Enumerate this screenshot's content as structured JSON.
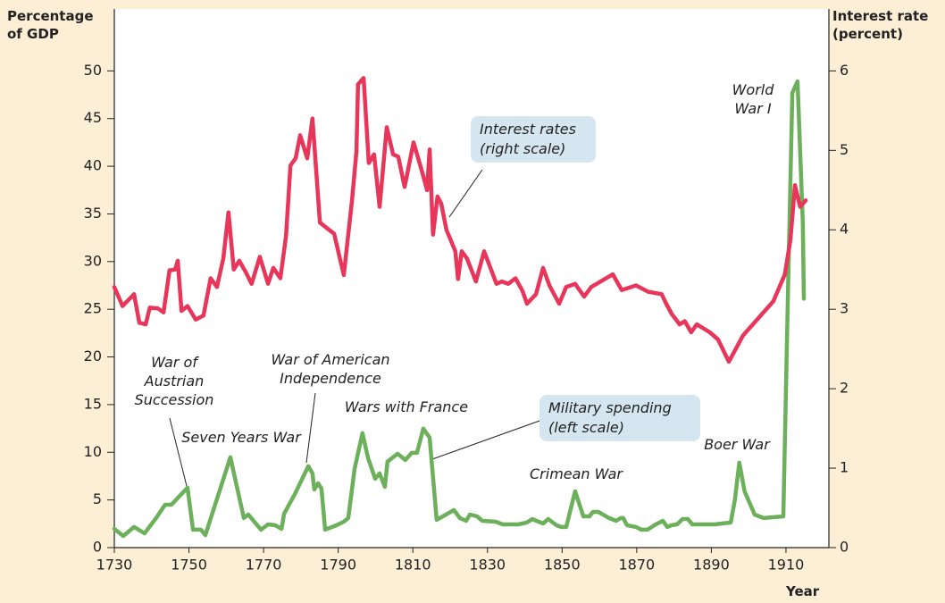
{
  "chart_data": {
    "type": "line",
    "y_label": "Percentage of GDP",
    "y2_label": "Interest rate (percent)",
    "x_label": "Year",
    "xlim": [
      1730,
      1921.5
    ],
    "xticks": [
      1730,
      1750,
      1770,
      1790,
      1810,
      1830,
      1850,
      1870,
      1890,
      1910
    ],
    "ylim": [
      0,
      56.5
    ],
    "yticks": [
      0,
      5,
      10,
      15,
      20,
      25,
      30,
      35,
      40,
      45,
      50
    ],
    "y2lim": [
      0,
      6.78
    ],
    "y2ticks": [
      0,
      1,
      2,
      3,
      4,
      5,
      6
    ],
    "series": [
      {
        "name": "Interest rates (right scale)",
        "color": "#e8365a",
        "axis": "y2",
        "x": [
          1730.0,
          1732.2,
          1735.3,
          1736.7,
          1738.4,
          1739.5,
          1741.7,
          1743.2,
          1744.8,
          1746.3,
          1747.0,
          1748.0,
          1749.6,
          1751.8,
          1753.9,
          1755.8,
          1757.5,
          1759.2,
          1760.6,
          1762.0,
          1763.5,
          1765.2,
          1766.8,
          1769.0,
          1771.2,
          1772.6,
          1774.5,
          1776.0,
          1777.2,
          1778.6,
          1779.8,
          1781.7,
          1783.1,
          1785.1,
          1788.9,
          1791.5,
          1793.7,
          1794.9,
          1795.3,
          1796.8,
          1798.2,
          1799.6,
          1801.1,
          1803.0,
          1804.7,
          1806.1,
          1807.8,
          1810.2,
          1812.6,
          1813.8,
          1814.5,
          1815.4,
          1816.6,
          1817.6,
          1819.0,
          1821.4,
          1822.1,
          1823.1,
          1824.5,
          1826.9,
          1829.1,
          1830.8,
          1832.4,
          1833.9,
          1835.6,
          1837.5,
          1839.4,
          1840.6,
          1843.0,
          1844.9,
          1846.6,
          1849.2,
          1851.1,
          1853.5,
          1855.9,
          1857.8,
          1863.6,
          1866.0,
          1869.8,
          1873.1,
          1876.7,
          1877.9,
          1879.4,
          1881.5,
          1882.9,
          1884.6,
          1886.1,
          1889.6,
          1891.8,
          1894.7,
          1898.5,
          1906.6,
          1909.7,
          1911.2,
          1912.4,
          1913.8,
          1915.3
        ],
        "values": [
          3.28,
          3.04,
          3.19,
          2.83,
          2.81,
          3.02,
          3.01,
          2.96,
          3.49,
          3.5,
          3.61,
          2.98,
          3.04,
          2.87,
          2.92,
          3.39,
          3.28,
          3.64,
          4.22,
          3.5,
          3.61,
          3.47,
          3.32,
          3.66,
          3.32,
          3.52,
          3.39,
          3.92,
          4.81,
          4.9,
          5.19,
          4.9,
          5.4,
          4.09,
          3.95,
          3.43,
          4.37,
          4.99,
          5.83,
          5.91,
          4.84,
          4.95,
          4.29,
          5.29,
          4.95,
          4.92,
          4.54,
          5.1,
          4.71,
          4.5,
          5.01,
          3.94,
          4.42,
          4.33,
          4.0,
          3.73,
          3.38,
          3.73,
          3.64,
          3.35,
          3.73,
          3.52,
          3.32,
          3.35,
          3.32,
          3.39,
          3.23,
          3.07,
          3.19,
          3.52,
          3.3,
          3.07,
          3.28,
          3.32,
          3.16,
          3.28,
          3.44,
          3.24,
          3.3,
          3.22,
          3.19,
          3.07,
          2.94,
          2.81,
          2.85,
          2.71,
          2.81,
          2.71,
          2.62,
          2.34,
          2.67,
          3.1,
          3.44,
          3.88,
          4.56,
          4.29,
          4.37
        ]
      },
      {
        "name": "Military spending (left scale)",
        "color": "#6cb05b",
        "x": [
          1730.0,
          1732.4,
          1735.3,
          1738.1,
          1741.2,
          1743.6,
          1745.3,
          1749.6,
          1751.1,
          1753.2,
          1754.4,
          1761.1,
          1764.7,
          1765.9,
          1769.3,
          1771.2,
          1773.1,
          1774.8,
          1775.5,
          1778.4,
          1782.0,
          1783.1,
          1783.6,
          1784.6,
          1785.5,
          1786.5,
          1789.6,
          1791.5,
          1792.7,
          1794.4,
          1796.5,
          1798.0,
          1799.9,
          1801.1,
          1802.5,
          1803.2,
          1805.9,
          1808.0,
          1809.7,
          1811.1,
          1812.8,
          1814.5,
          1816.4,
          1821.0,
          1822.6,
          1824.3,
          1825.3,
          1827.2,
          1828.6,
          1832.2,
          1834.1,
          1838.2,
          1840.6,
          1842.0,
          1843.7,
          1844.9,
          1846.3,
          1848.5,
          1849.7,
          1851.1,
          1853.5,
          1855.7,
          1857.3,
          1858.3,
          1859.7,
          1862.6,
          1864.5,
          1865.7,
          1866.4,
          1867.4,
          1869.8,
          1871.2,
          1872.9,
          1875.1,
          1877.0,
          1878.2,
          1879.4,
          1880.8,
          1882.3,
          1883.7,
          1884.9,
          1890.9,
          1895.2,
          1896.3,
          1897.5,
          1898.9,
          1901.6,
          1904.0,
          1909.3,
          1910.5,
          1911.7,
          1913.1,
          1914.5,
          1914.8
        ],
        "values": [
          1.97,
          1.22,
          2.16,
          1.5,
          3.1,
          4.5,
          4.5,
          6.29,
          1.88,
          1.88,
          1.31,
          9.47,
          3.1,
          3.47,
          1.88,
          2.44,
          2.35,
          1.97,
          3.56,
          5.63,
          8.54,
          7.79,
          6.1,
          6.75,
          6.19,
          1.88,
          2.35,
          2.72,
          3.1,
          8.26,
          12.01,
          9.38,
          7.22,
          7.79,
          6.38,
          9.01,
          9.85,
          9.19,
          9.94,
          9.94,
          12.48,
          11.54,
          2.91,
          3.94,
          3.1,
          2.81,
          3.47,
          3.28,
          2.81,
          2.72,
          2.44,
          2.44,
          2.63,
          3.0,
          2.72,
          2.53,
          3.0,
          2.35,
          2.16,
          2.16,
          5.91,
          3.28,
          3.28,
          3.75,
          3.75,
          3.1,
          2.81,
          3.1,
          3.1,
          2.35,
          2.16,
          1.88,
          1.88,
          2.44,
          2.81,
          2.16,
          2.35,
          2.44,
          3.0,
          3.0,
          2.44,
          2.44,
          2.63,
          4.97,
          8.91,
          5.91,
          3.47,
          3.1,
          3.28,
          25.9,
          47.7,
          48.9,
          34.1,
          26.1
        ]
      }
    ],
    "annotations": [
      "War of Austrian Succession",
      "Seven Years War",
      "War of American Independence",
      "Wars with France",
      "Crimean War",
      "Boer War",
      "World War I"
    ]
  }
}
